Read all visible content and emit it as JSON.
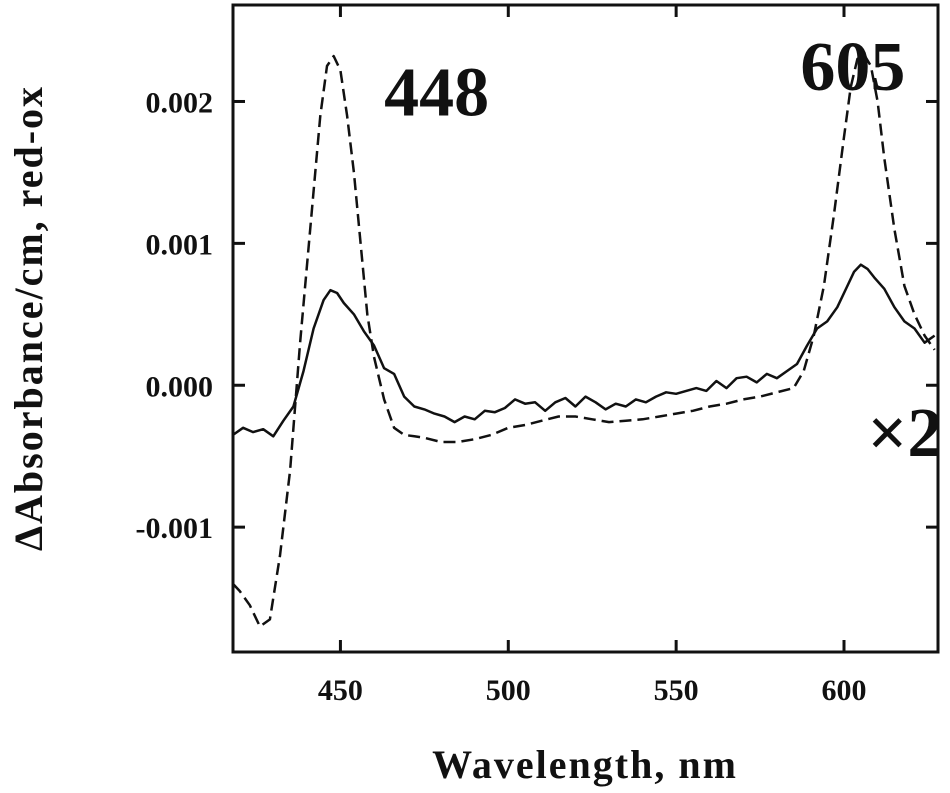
{
  "chart_data": {
    "type": "line",
    "xlabel": "Wavelength, nm",
    "ylabel": "ΔAbsorbance/cm, red-ox",
    "xlim": [
      418,
      628
    ],
    "ylim": [
      -0.00188,
      0.00268
    ],
    "xticks": [
      450,
      500,
      550,
      600
    ],
    "xtick_labels": [
      "450",
      "500",
      "550",
      "600"
    ],
    "yticks": [
      -0.001,
      0.0,
      0.001,
      0.002
    ],
    "ytick_labels": [
      "-0.001",
      "0.000",
      "0.001",
      "0.002"
    ],
    "grid": false,
    "legend": "none",
    "annotations": [
      {
        "text": "448",
        "x": 463,
        "y": 0.0019
      },
      {
        "text": "605",
        "x": 587,
        "y": 0.00208
      },
      {
        "text": "×2",
        "x": 607,
        "y": -0.0005
      }
    ],
    "series": [
      {
        "style": "solid",
        "color": "#111111",
        "x": [
          418,
          421,
          424,
          427,
          430,
          433,
          436,
          439,
          442,
          445,
          447,
          449,
          451,
          454,
          457,
          460,
          463,
          466,
          469,
          472,
          475,
          478,
          481,
          484,
          487,
          490,
          493,
          496,
          499,
          502,
          505,
          508,
          511,
          514,
          517,
          520,
          523,
          526,
          529,
          532,
          535,
          538,
          541,
          544,
          547,
          550,
          553,
          556,
          559,
          562,
          565,
          568,
          571,
          574,
          577,
          580,
          583,
          586,
          589,
          592,
          595,
          598,
          601,
          603,
          605,
          607,
          609,
          612,
          615,
          618,
          621,
          624,
          627
        ],
        "y": [
          -0.00035,
          -0.0003,
          -0.00033,
          -0.00031,
          -0.00036,
          -0.00025,
          -0.00015,
          0.0001,
          0.0004,
          0.0006,
          0.00067,
          0.00065,
          0.00058,
          0.0005,
          0.00038,
          0.00028,
          0.00012,
          8e-05,
          -8e-05,
          -0.00015,
          -0.00017,
          -0.0002,
          -0.00022,
          -0.00026,
          -0.00022,
          -0.00024,
          -0.00018,
          -0.00019,
          -0.00016,
          -0.0001,
          -0.00013,
          -0.00012,
          -0.00018,
          -0.00012,
          -9e-05,
          -0.00015,
          -8e-05,
          -0.00012,
          -0.00017,
          -0.00013,
          -0.00015,
          -0.0001,
          -0.00012,
          -8e-05,
          -5e-05,
          -6e-05,
          -4e-05,
          -2e-05,
          -4e-05,
          3e-05,
          -2e-05,
          5e-05,
          6e-05,
          2e-05,
          8e-05,
          5e-05,
          0.0001,
          0.00015,
          0.00028,
          0.0004,
          0.00045,
          0.00055,
          0.0007,
          0.0008,
          0.00085,
          0.00082,
          0.00076,
          0.00068,
          0.00055,
          0.00045,
          0.0004,
          0.0003,
          0.00035
        ]
      },
      {
        "style": "dashed",
        "color": "#111111",
        "x": [
          418,
          420,
          423,
          426,
          429,
          432,
          435,
          438,
          441,
          444,
          446,
          448,
          450,
          452,
          454,
          456,
          458,
          460,
          463,
          466,
          469,
          472,
          475,
          480,
          485,
          490,
          495,
          500,
          505,
          510,
          515,
          520,
          525,
          530,
          535,
          540,
          545,
          550,
          555,
          560,
          565,
          570,
          575,
          580,
          585,
          588,
          591,
          594,
          597,
          600,
          602,
          604,
          606,
          608,
          610,
          612,
          615,
          618,
          621,
          624,
          627
        ],
        "y": [
          -0.0014,
          -0.00145,
          -0.00155,
          -0.0017,
          -0.00165,
          -0.0012,
          -0.0006,
          0.0003,
          0.0011,
          0.0019,
          0.00225,
          0.00232,
          0.00222,
          0.0019,
          0.0015,
          0.001,
          0.0005,
          0.0002,
          -0.0001,
          -0.0003,
          -0.00035,
          -0.00036,
          -0.00037,
          -0.0004,
          -0.0004,
          -0.00038,
          -0.00035,
          -0.0003,
          -0.00028,
          -0.00025,
          -0.00022,
          -0.00022,
          -0.00024,
          -0.00026,
          -0.00025,
          -0.00024,
          -0.00022,
          -0.0002,
          -0.00018,
          -0.00015,
          -0.00013,
          -0.0001,
          -8e-05,
          -5e-05,
          -2e-05,
          0.0001,
          0.00035,
          0.0007,
          0.0012,
          0.00175,
          0.0021,
          0.0023,
          0.00233,
          0.00225,
          0.002,
          0.0016,
          0.0011,
          0.0007,
          0.0005,
          0.00035,
          0.00025
        ]
      }
    ]
  }
}
